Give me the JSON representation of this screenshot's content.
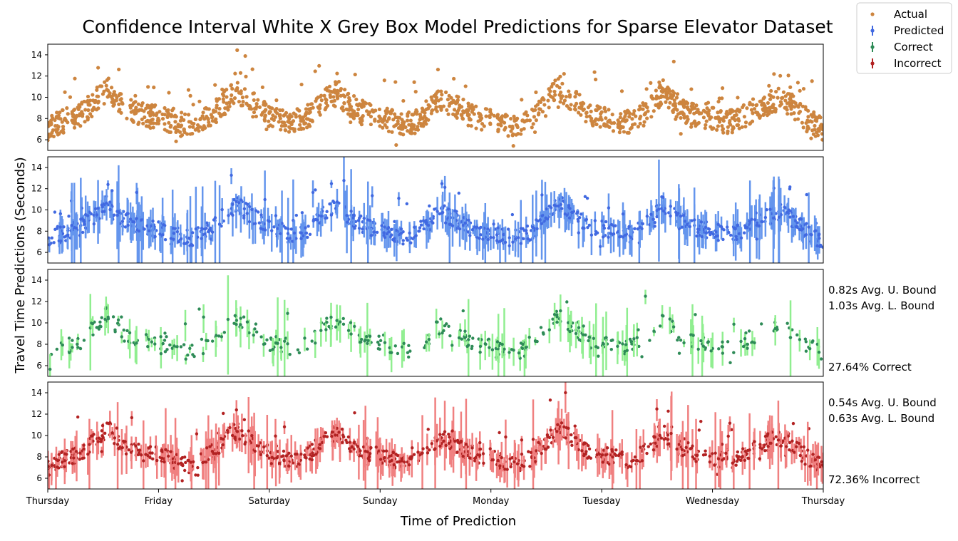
{
  "chart_data": {
    "type": "scatter",
    "title": "Confidence Interval White X Grey Box Model Predictions for Sparse Elevator Dataset",
    "xlabel": "Time of Prediction",
    "ylabel": "Travel Time Predictions (Seconds)",
    "ylim": [
      5,
      15
    ],
    "yticks": [
      6,
      8,
      10,
      12,
      14
    ],
    "x_ticks": [
      "Thursday",
      "Friday",
      "Saturday",
      "Sunday",
      "Monday",
      "Tuesday",
      "Wednesday",
      "Thursday"
    ],
    "x_range_days": [
      0,
      7
    ],
    "grid": false,
    "legend": {
      "position": "top-right",
      "entries": [
        {
          "label": "Actual",
          "color": "#cd853f"
        },
        {
          "label": "Predicted",
          "color": "#4169e1"
        },
        {
          "label": "Correct",
          "color": "#2e8b57"
        },
        {
          "label": "Incorrect",
          "color": "#b22222"
        }
      ]
    },
    "panels": [
      {
        "name": "Actual",
        "color": "#cd853f",
        "band_color": null,
        "stats": []
      },
      {
        "name": "Predicted",
        "color": "#4169e1",
        "band_color": "#6495ed",
        "stats": []
      },
      {
        "name": "Correct",
        "color": "#2e8b57",
        "band_color": "#90ee90",
        "stats": [
          "0.82s Avg. U. Bound",
          "1.03s Avg. L. Bound",
          "27.64% Correct"
        ]
      },
      {
        "name": "Incorrect",
        "color": "#b22222",
        "band_color": "#f08080",
        "stats": [
          "0.54s Avg. U. Bound",
          "0.63s Avg. L. Bound",
          "72.36% Incorrect"
        ]
      }
    ],
    "series_points": [
      [
        0.0,
        7.0
      ],
      [
        0.1,
        7.6
      ],
      [
        0.2,
        8.0
      ],
      [
        0.3,
        8.4
      ],
      [
        0.4,
        9.3
      ],
      [
        0.5,
        10.2
      ],
      [
        0.55,
        11.0
      ],
      [
        0.6,
        9.8
      ],
      [
        0.7,
        9.0
      ],
      [
        0.8,
        8.6
      ],
      [
        0.9,
        8.2
      ],
      [
        1.0,
        8.2
      ],
      [
        1.1,
        7.8
      ],
      [
        1.2,
        7.4
      ],
      [
        1.3,
        7.3
      ],
      [
        1.4,
        7.8
      ],
      [
        1.5,
        8.5
      ],
      [
        1.6,
        9.6
      ],
      [
        1.7,
        10.6
      ],
      [
        1.8,
        9.8
      ],
      [
        1.9,
        9.0
      ],
      [
        2.0,
        8.2
      ],
      [
        2.1,
        8.0
      ],
      [
        2.2,
        7.7
      ],
      [
        2.3,
        7.9
      ],
      [
        2.4,
        8.6
      ],
      [
        2.5,
        9.8
      ],
      [
        2.6,
        10.2
      ],
      [
        2.7,
        9.5
      ],
      [
        2.8,
        8.8
      ],
      [
        2.9,
        8.4
      ],
      [
        3.0,
        8.2
      ],
      [
        3.1,
        7.8
      ],
      [
        3.2,
        7.4
      ],
      [
        3.3,
        7.6
      ],
      [
        3.4,
        8.4
      ],
      [
        3.5,
        9.4
      ],
      [
        3.55,
        9.8
      ],
      [
        3.6,
        9.5
      ],
      [
        3.7,
        9.0
      ],
      [
        3.8,
        8.4
      ],
      [
        3.9,
        8.0
      ],
      [
        4.0,
        8.0
      ],
      [
        4.1,
        7.6
      ],
      [
        4.2,
        7.3
      ],
      [
        4.3,
        7.6
      ],
      [
        4.4,
        8.2
      ],
      [
        4.5,
        9.4
      ],
      [
        4.6,
        10.8
      ],
      [
        4.7,
        10.0
      ],
      [
        4.8,
        9.2
      ],
      [
        4.9,
        8.4
      ],
      [
        5.0,
        8.2
      ],
      [
        5.1,
        8.0
      ],
      [
        5.2,
        7.6
      ],
      [
        5.3,
        7.8
      ],
      [
        5.4,
        8.6
      ],
      [
        5.5,
        9.8
      ],
      [
        5.55,
        10.6
      ],
      [
        5.6,
        9.8
      ],
      [
        5.7,
        9.0
      ],
      [
        5.8,
        8.4
      ],
      [
        5.9,
        8.2
      ],
      [
        6.0,
        8.0
      ],
      [
        6.1,
        7.7
      ],
      [
        6.2,
        7.8
      ],
      [
        6.3,
        8.3
      ],
      [
        6.4,
        9.0
      ],
      [
        6.5,
        9.4
      ],
      [
        6.6,
        9.8
      ],
      [
        6.7,
        9.4
      ],
      [
        6.8,
        8.4
      ],
      [
        6.9,
        7.6
      ],
      [
        7.0,
        7.0
      ]
    ]
  }
}
